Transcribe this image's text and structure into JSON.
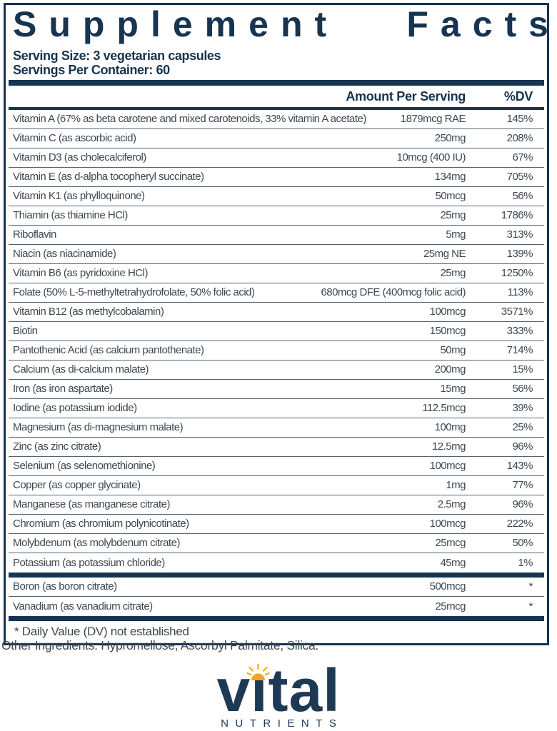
{
  "colors": {
    "navy": "#173450",
    "text": "#3d4751",
    "divider": "#56626e",
    "sun_orange": "#f2a51d",
    "sun_ray": "#f7b41c",
    "logo_navy": "#1d3a54"
  },
  "header": {
    "title_word1": "Supplement",
    "title_word2": "Facts",
    "serving_size": "Serving Size: 3 vegetarian capsules",
    "servings_per_container": "Servings Per Container: 60"
  },
  "table": {
    "columns": {
      "amount": "Amount Per Serving",
      "dv": "%DV"
    },
    "rows": [
      {
        "name": "Vitamin A (67% as beta carotene and mixed carotenoids, 33% vitamin A acetate)",
        "amount": "1879mcg RAE",
        "dv": "145%"
      },
      {
        "name": "Vitamin C (as ascorbic acid)",
        "amount": "250mg",
        "dv": "208%"
      },
      {
        "name": "Vitamin D3 (as cholecalciferol)",
        "amount": "10mcg (400 IU)",
        "dv": "67%"
      },
      {
        "name": "Vitamin E (as d-alpha tocopheryl succinate)",
        "amount": "134mg",
        "dv": "705%"
      },
      {
        "name": "Vitamin K1 (as phylloquinone)",
        "amount": "50mcg",
        "dv": "56%"
      },
      {
        "name": "Thiamin (as thiamine HCl)",
        "amount": "25mg",
        "dv": "1786%"
      },
      {
        "name": "Riboflavin",
        "amount": "5mg",
        "dv": "313%"
      },
      {
        "name": "Niacin (as niacinamide)",
        "amount": "25mg NE",
        "dv": "139%"
      },
      {
        "name": "Vitamin B6 (as pyridoxine HCl)",
        "amount": "25mg",
        "dv": "1250%"
      },
      {
        "name": "Folate (50% L-5-methyltetrahydrofolate, 50% folic acid)",
        "amount": "680mcg DFE (400mcg folic acid)",
        "dv": "113%"
      },
      {
        "name": "Vitamin B12 (as methylcobalamin)",
        "amount": "100mcg",
        "dv": "3571%"
      },
      {
        "name": "Biotin",
        "amount": "150mcg",
        "dv": "333%"
      },
      {
        "name": "Pantothenic Acid (as calcium pantothenate)",
        "amount": "50mg",
        "dv": "714%"
      },
      {
        "name": "Calcium (as di-calcium malate)",
        "amount": "200mg",
        "dv": "15%"
      },
      {
        "name": "Iron (as iron aspartate)",
        "amount": "15mg",
        "dv": "56%"
      },
      {
        "name": "Iodine (as potassium iodide)",
        "amount": "112.5mcg",
        "dv": "39%"
      },
      {
        "name": "Magnesium (as di-magnesium malate)",
        "amount": "100mg",
        "dv": "25%"
      },
      {
        "name": "Zinc (as zinc citrate)",
        "amount": "12.5mg",
        "dv": "96%"
      },
      {
        "name": "Selenium (as selenomethionine)",
        "amount": "100mcg",
        "dv": "143%"
      },
      {
        "name": "Copper (as copper glycinate)",
        "amount": "1mg",
        "dv": "77%"
      },
      {
        "name": "Manganese (as manganese citrate)",
        "amount": "2.5mg",
        "dv": "96%"
      },
      {
        "name": "Chromium (as chromium polynicotinate)",
        "amount": "100mcg",
        "dv": "222%"
      },
      {
        "name": "Molybdenum (as molybdenum citrate)",
        "amount": "25mcg",
        "dv": "50%"
      },
      {
        "name": "Potassium (as potassium chloride)",
        "amount": "45mg",
        "dv": "1%"
      }
    ],
    "secondary_rows": [
      {
        "name": "Boron (as boron citrate)",
        "amount": "500mcg",
        "dv": "*"
      },
      {
        "name": "Vanadium (as vanadium citrate)",
        "amount": "25mcg",
        "dv": "*"
      }
    ],
    "footnote": "* Daily Value (DV) not established"
  },
  "other_ingredients": "Other Ingredients: Hypromellose, Ascorbyl Palmitate, Silica.",
  "logo": {
    "brand": "vital",
    "subtext": "NUTRIENTS"
  }
}
